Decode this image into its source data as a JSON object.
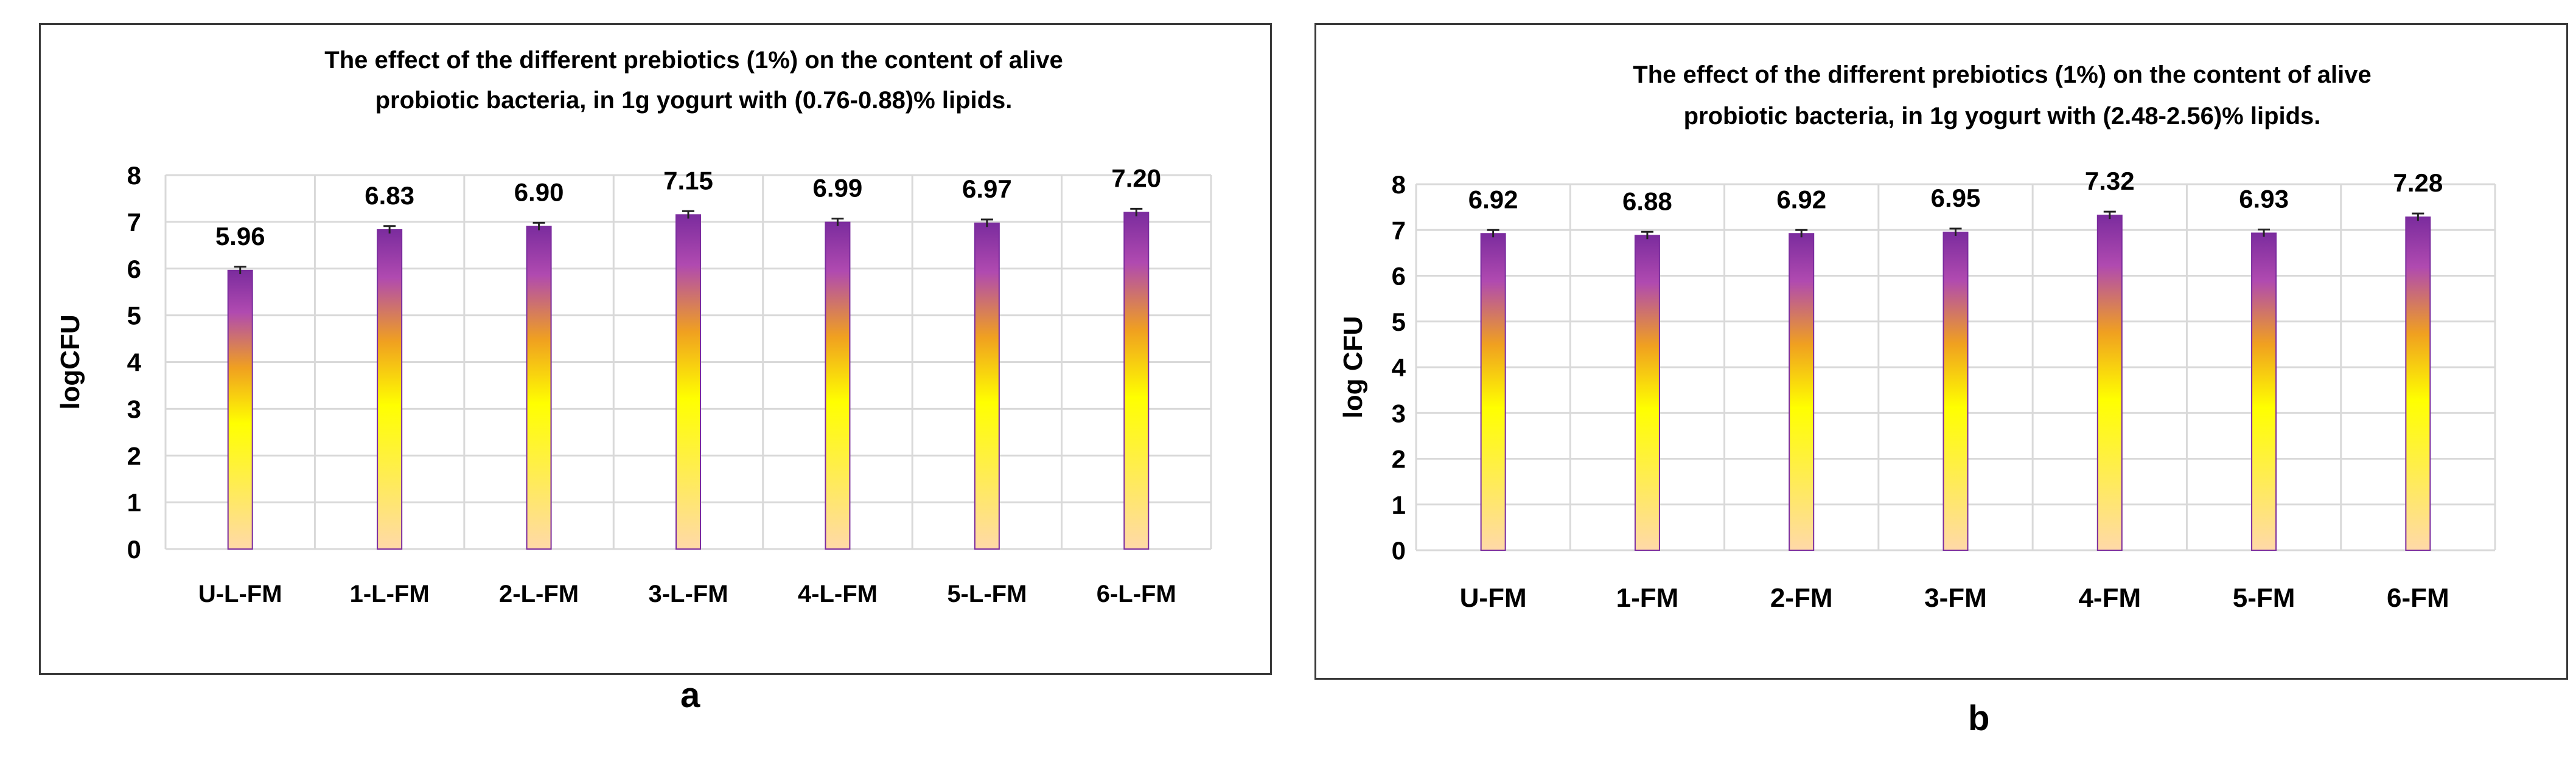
{
  "colors": {
    "bar_top": "#7b2c9e",
    "bar_mid_purple": "#b04ab0",
    "bar_mid": "#f0a020",
    "bar_yellow": "#ffff00",
    "bar_bottom": "#ffd9a8",
    "grid": "#d9d9d9",
    "frame": "#3a3a3a",
    "text": "#000000"
  },
  "panel_labels": [
    "a",
    "b"
  ],
  "chart_data": [
    {
      "type": "bar",
      "title_lines": [
        "The effect of the different prebiotics (1%) on the content of alive",
        "probiotic bacteria, in 1g yogurt with (0.76-0.88)% lipids."
      ],
      "xlabel": "",
      "ylabel": "logCFU",
      "ylim": [
        0,
        8
      ],
      "yticks": [
        0,
        1,
        2,
        3,
        4,
        5,
        6,
        7,
        8
      ],
      "grid": true,
      "categories": [
        "U-L-FM",
        "1-L-FM",
        "2-L-FM",
        "3-L-FM",
        "4-L-FM",
        "5-L-FM",
        "6-L-FM"
      ],
      "values": [
        5.96,
        6.83,
        6.9,
        7.15,
        6.99,
        6.97,
        7.2
      ],
      "value_labels": [
        "5.96",
        "6.83",
        "6.90",
        "7.15",
        "6.99",
        "6.97",
        "7.20"
      ],
      "error": [
        0.08,
        0.08,
        0.08,
        0.08,
        0.08,
        0.08,
        0.08
      ]
    },
    {
      "type": "bar",
      "title_lines": [
        "The effect of the different prebiotics (1%) on the content of alive",
        "probiotic bacteria, in 1g yogurt with (2.48-2.56)% lipids."
      ],
      "xlabel": "",
      "ylabel": "log CFU",
      "ylim": [
        0,
        8
      ],
      "yticks": [
        0,
        1,
        2,
        3,
        4,
        5,
        6,
        7,
        8
      ],
      "grid": true,
      "categories": [
        "U-FM",
        "1-FM",
        "2-FM",
        "3-FM",
        "4-FM",
        "5-FM",
        "6-FM"
      ],
      "values": [
        6.92,
        6.88,
        6.92,
        6.95,
        7.32,
        6.93,
        7.28
      ],
      "value_labels": [
        "6.92",
        "6.88",
        "6.92",
        "6.95",
        "7.32",
        "6.93",
        "7.28"
      ],
      "error": [
        0.08,
        0.08,
        0.08,
        0.08,
        0.08,
        0.08,
        0.08
      ]
    }
  ]
}
